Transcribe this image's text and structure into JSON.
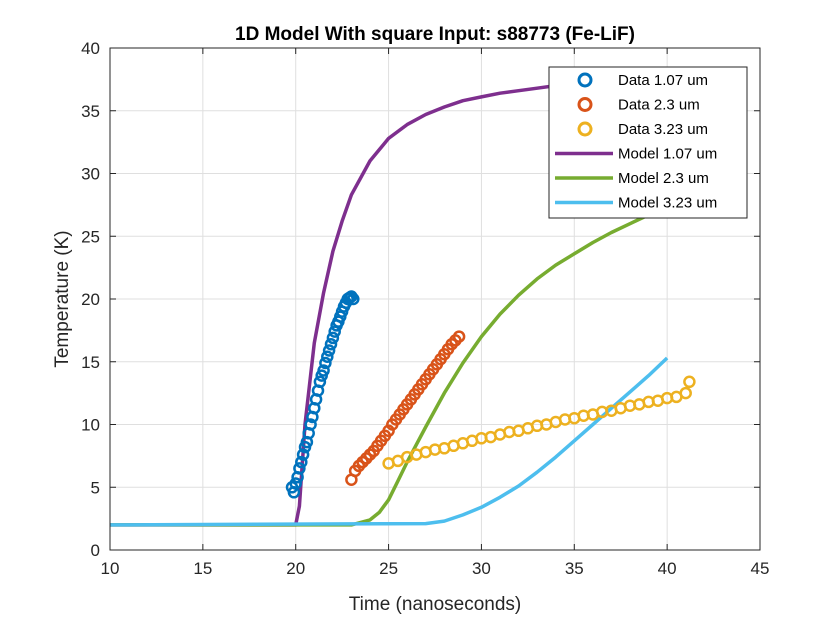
{
  "chart_data": {
    "type": "scatter",
    "title": "1D Model With square Input: s88773 (Fe-LiF)",
    "xlabel": "Time (nanoseconds)",
    "ylabel": "Temperature (K)",
    "xlim": [
      10,
      45
    ],
    "ylim": [
      0,
      40
    ],
    "xticks": [
      10,
      15,
      20,
      25,
      30,
      35,
      40,
      45
    ],
    "yticks": [
      0,
      5,
      10,
      15,
      20,
      25,
      30,
      35,
      40
    ],
    "grid": true,
    "legend_position": "top-right",
    "series": [
      {
        "name": "Data 1.07 um",
        "kind": "markers",
        "color": "#0072BD",
        "x": [
          19.8,
          19.9,
          20.0,
          20.1,
          20.2,
          20.3,
          20.4,
          20.5,
          20.6,
          20.7,
          20.8,
          20.9,
          21.0,
          21.1,
          21.2,
          21.3,
          21.4,
          21.5,
          21.6,
          21.7,
          21.8,
          21.9,
          22.0,
          22.1,
          22.2,
          22.3,
          22.4,
          22.5,
          22.6,
          22.7,
          22.8,
          22.9,
          23.0,
          23.1
        ],
        "y": [
          5.0,
          4.6,
          5.3,
          5.8,
          6.5,
          7.0,
          7.6,
          8.2,
          8.6,
          9.3,
          10.0,
          10.6,
          11.3,
          12.0,
          12.7,
          13.4,
          13.9,
          14.3,
          14.9,
          15.4,
          15.9,
          16.4,
          16.9,
          17.4,
          17.9,
          18.2,
          18.6,
          19.0,
          19.4,
          19.7,
          20.0,
          20.1,
          20.2,
          20.0
        ]
      },
      {
        "name": "Data 2.3 um",
        "kind": "markers",
        "color": "#D95319",
        "x": [
          23.0,
          23.2,
          23.4,
          23.6,
          23.8,
          24.0,
          24.2,
          24.4,
          24.6,
          24.8,
          25.0,
          25.2,
          25.4,
          25.6,
          25.8,
          26.0,
          26.2,
          26.4,
          26.6,
          26.8,
          27.0,
          27.2,
          27.4,
          27.6,
          27.8,
          28.0,
          28.2,
          28.4,
          28.6,
          28.8
        ],
        "y": [
          5.6,
          6.3,
          6.7,
          7.0,
          7.3,
          7.6,
          7.9,
          8.3,
          8.7,
          9.1,
          9.5,
          10.0,
          10.4,
          10.8,
          11.2,
          11.6,
          12.0,
          12.4,
          12.8,
          13.2,
          13.6,
          14.0,
          14.4,
          14.8,
          15.2,
          15.6,
          16.0,
          16.4,
          16.7,
          17.0
        ]
      },
      {
        "name": "Data 3.23 um",
        "kind": "markers",
        "color": "#EDB120",
        "x": [
          25.0,
          25.5,
          26.0,
          26.5,
          27.0,
          27.5,
          28.0,
          28.5,
          29.0,
          29.5,
          30.0,
          30.5,
          31.0,
          31.5,
          32.0,
          32.5,
          33.0,
          33.5,
          34.0,
          34.5,
          35.0,
          35.5,
          36.0,
          36.5,
          37.0,
          37.5,
          38.0,
          38.5,
          39.0,
          39.5,
          40.0,
          40.5,
          41.0,
          41.2
        ],
        "y": [
          6.9,
          7.1,
          7.4,
          7.6,
          7.8,
          8.0,
          8.1,
          8.3,
          8.5,
          8.7,
          8.9,
          9.0,
          9.2,
          9.4,
          9.5,
          9.7,
          9.9,
          10.0,
          10.2,
          10.4,
          10.5,
          10.7,
          10.8,
          11.0,
          11.1,
          11.3,
          11.5,
          11.6,
          11.8,
          11.9,
          12.1,
          12.2,
          12.5,
          13.4
        ]
      },
      {
        "name": "Model 1.07 um",
        "kind": "line",
        "color": "#7E2F8E",
        "x": [
          10,
          20.0,
          20.2,
          20.5,
          21.0,
          21.5,
          22.0,
          22.5,
          23.0,
          24.0,
          25.0,
          26.0,
          27.0,
          28.0,
          29.0,
          30.0,
          31.0,
          32.0,
          33.0,
          34.0,
          35.0
        ],
        "y": [
          2.0,
          2.0,
          3.5,
          10.0,
          16.5,
          20.5,
          23.8,
          26.2,
          28.3,
          31.0,
          32.8,
          33.9,
          34.7,
          35.3,
          35.8,
          36.1,
          36.4,
          36.6,
          36.8,
          37.0,
          37.1
        ]
      },
      {
        "name": "Model 2.3 um",
        "kind": "line",
        "color": "#77AC30",
        "x": [
          10,
          23.0,
          24.0,
          24.5,
          25.0,
          25.5,
          26.0,
          27.0,
          28.0,
          29.0,
          30.0,
          31.0,
          32.0,
          33.0,
          34.0,
          35.0,
          36.0,
          37.0,
          38.0,
          39.0,
          40.0
        ],
        "y": [
          2.0,
          2.0,
          2.4,
          3.0,
          4.0,
          5.5,
          7.0,
          9.8,
          12.5,
          14.9,
          17.0,
          18.8,
          20.3,
          21.6,
          22.7,
          23.6,
          24.5,
          25.3,
          26.0,
          26.7,
          27.3
        ]
      },
      {
        "name": "Model 3.23 um",
        "kind": "line",
        "color": "#4DBEEE",
        "x": [
          10,
          27.0,
          28.0,
          29.0,
          30.0,
          31.0,
          32.0,
          33.0,
          34.0,
          35.0,
          36.0,
          37.0,
          38.0,
          39.0,
          40.0
        ],
        "y": [
          2.0,
          2.1,
          2.3,
          2.8,
          3.4,
          4.2,
          5.1,
          6.2,
          7.4,
          8.7,
          10.0,
          11.3,
          12.6,
          13.9,
          15.3
        ]
      }
    ]
  }
}
